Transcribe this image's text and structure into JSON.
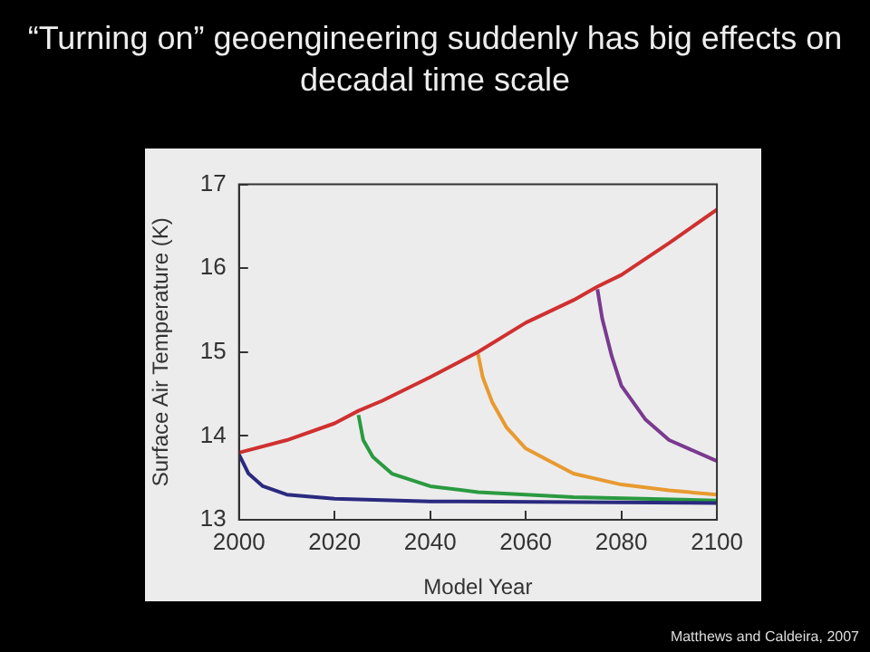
{
  "chart_data": {
    "type": "line",
    "title": "“Turning on” geoengineering suddenly has big effects on decadal time scale",
    "xlabel": "Model Year",
    "ylabel": "Surface Air Temperature (K)",
    "xlim": [
      2000,
      2100
    ],
    "xticks": [
      2000,
      2020,
      2040,
      2060,
      2080,
      2100
    ],
    "ylim": [
      13,
      17
    ],
    "yticks": [
      13,
      14,
      15,
      16,
      17
    ],
    "grid": false,
    "legend": false,
    "marker": "none",
    "line_style": "solid",
    "annotations": [
      "Matthews and Caldeira, 2007"
    ],
    "series": [
      {
        "color": "#d03030",
        "x": [
          2000,
          2010,
          2020,
          2025,
          2030,
          2040,
          2050,
          2060,
          2070,
          2075,
          2080,
          2090,
          2100
        ],
        "values": [
          13.8,
          13.95,
          14.15,
          14.3,
          14.42,
          14.7,
          15.0,
          15.35,
          15.62,
          15.78,
          15.92,
          16.3,
          16.7
        ]
      },
      {
        "color": "#2a2a80",
        "x": [
          2000,
          2002,
          2005,
          2010,
          2020,
          2040,
          2100
        ],
        "values": [
          13.78,
          13.55,
          13.4,
          13.3,
          13.25,
          13.22,
          13.2
        ]
      },
      {
        "color": "#2a9a40",
        "x": [
          2025,
          2026,
          2028,
          2032,
          2040,
          2050,
          2070,
          2100
        ],
        "values": [
          14.25,
          13.95,
          13.75,
          13.55,
          13.4,
          13.33,
          13.27,
          13.23
        ]
      },
      {
        "color": "#e89a30",
        "x": [
          2050,
          2051,
          2053,
          2056,
          2060,
          2070,
          2080,
          2090,
          2100
        ],
        "values": [
          14.98,
          14.7,
          14.4,
          14.1,
          13.85,
          13.55,
          13.42,
          13.35,
          13.3
        ]
      },
      {
        "color": "#7a3a90",
        "x": [
          2075,
          2076,
          2078,
          2080,
          2085,
          2090,
          2100
        ],
        "values": [
          15.75,
          15.4,
          14.95,
          14.6,
          14.2,
          13.95,
          13.7
        ]
      }
    ]
  }
}
